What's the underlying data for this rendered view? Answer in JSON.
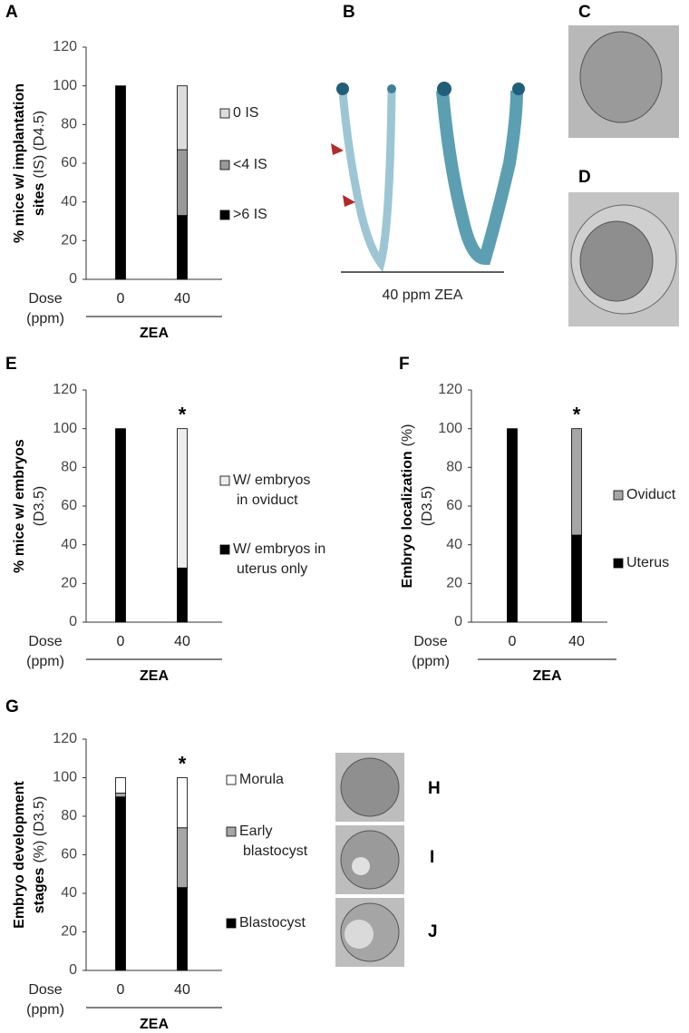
{
  "chart_data": [
    {
      "type": "bar",
      "panel": "A",
      "ylabel_lines": [
        {
          "bold": "% mice w/ implantation"
        },
        {
          "bold": "sites",
          "note": "(IS) (D4.5)"
        }
      ],
      "xlabel": [
        "Dose",
        "(ppm)"
      ],
      "categories": [
        "0",
        "40"
      ],
      "group_label": "ZEA",
      "ylim": [
        0,
        120
      ],
      "yticks": [
        0,
        20,
        40,
        60,
        80,
        100,
        120
      ],
      "series": [
        {
          "name": ">6 IS",
          "color": "#000000",
          "values": [
            100,
            33
          ]
        },
        {
          "name": "<4 IS",
          "color": "#999999",
          "values": [
            0,
            34
          ]
        },
        {
          "name": "0 IS",
          "color": "#dddddd",
          "values": [
            0,
            33
          ]
        }
      ]
    },
    {
      "type": "bar",
      "panel": "E",
      "ylabel_lines": [
        {
          "bold": "% mice w/ embryos"
        },
        {
          "note": "(D3.5)"
        }
      ],
      "xlabel": [
        "Dose",
        "(ppm)"
      ],
      "categories": [
        "0",
        "40"
      ],
      "group_label": "ZEA",
      "annotation": "*",
      "ylim": [
        0,
        120
      ],
      "yticks": [
        0,
        20,
        40,
        60,
        80,
        100,
        120
      ],
      "series": [
        {
          "name": [
            "W/ embryos in",
            "uterus only"
          ],
          "color": "#000000",
          "values": [
            100,
            28
          ]
        },
        {
          "name": [
            "W/ embryos",
            "in oviduct"
          ],
          "color": "#eeeeee",
          "values": [
            0,
            72
          ]
        }
      ]
    },
    {
      "type": "bar",
      "panel": "F",
      "ylabel_lines": [
        {
          "bold": "Embryo localization",
          "note": "(%)"
        },
        {
          "note": "(D3.5)"
        }
      ],
      "xlabel": [
        "Dose",
        "(ppm)"
      ],
      "categories": [
        "0",
        "40"
      ],
      "group_label": "ZEA",
      "annotation": "*",
      "ylim": [
        0,
        120
      ],
      "yticks": [
        0,
        20,
        40,
        60,
        80,
        100,
        120
      ],
      "series": [
        {
          "name": "Uterus",
          "color": "#000000",
          "values": [
            100,
            45
          ]
        },
        {
          "name": "Oviduct",
          "color": "#a6a6a6",
          "values": [
            0,
            55
          ]
        }
      ]
    },
    {
      "type": "bar",
      "panel": "G",
      "ylabel_lines": [
        {
          "bold": "Embryo development"
        },
        {
          "bold": "stages",
          "note": "(%) (D3.5)"
        }
      ],
      "xlabel": [
        "Dose",
        "(ppm)"
      ],
      "categories": [
        "0",
        "40"
      ],
      "group_label": "ZEA",
      "annotation": "*",
      "ylim": [
        0,
        120
      ],
      "yticks": [
        0,
        20,
        40,
        60,
        80,
        100,
        120
      ],
      "series": [
        {
          "name": "Blastocyst",
          "color": "#000000",
          "values": [
            90,
            43
          ]
        },
        {
          "name": [
            "Early",
            "blastocyst"
          ],
          "color": "#a6a6a6",
          "values": [
            2,
            31
          ]
        },
        {
          "name": "Morula",
          "color": "#ffffff",
          "values": [
            8,
            26
          ]
        }
      ]
    }
  ],
  "images": [
    {
      "panel": "B",
      "caption": "40 ppm ZEA"
    },
    {
      "panel": "C"
    },
    {
      "panel": "D"
    },
    {
      "panel": "H"
    },
    {
      "panel": "I"
    },
    {
      "panel": "J"
    }
  ]
}
